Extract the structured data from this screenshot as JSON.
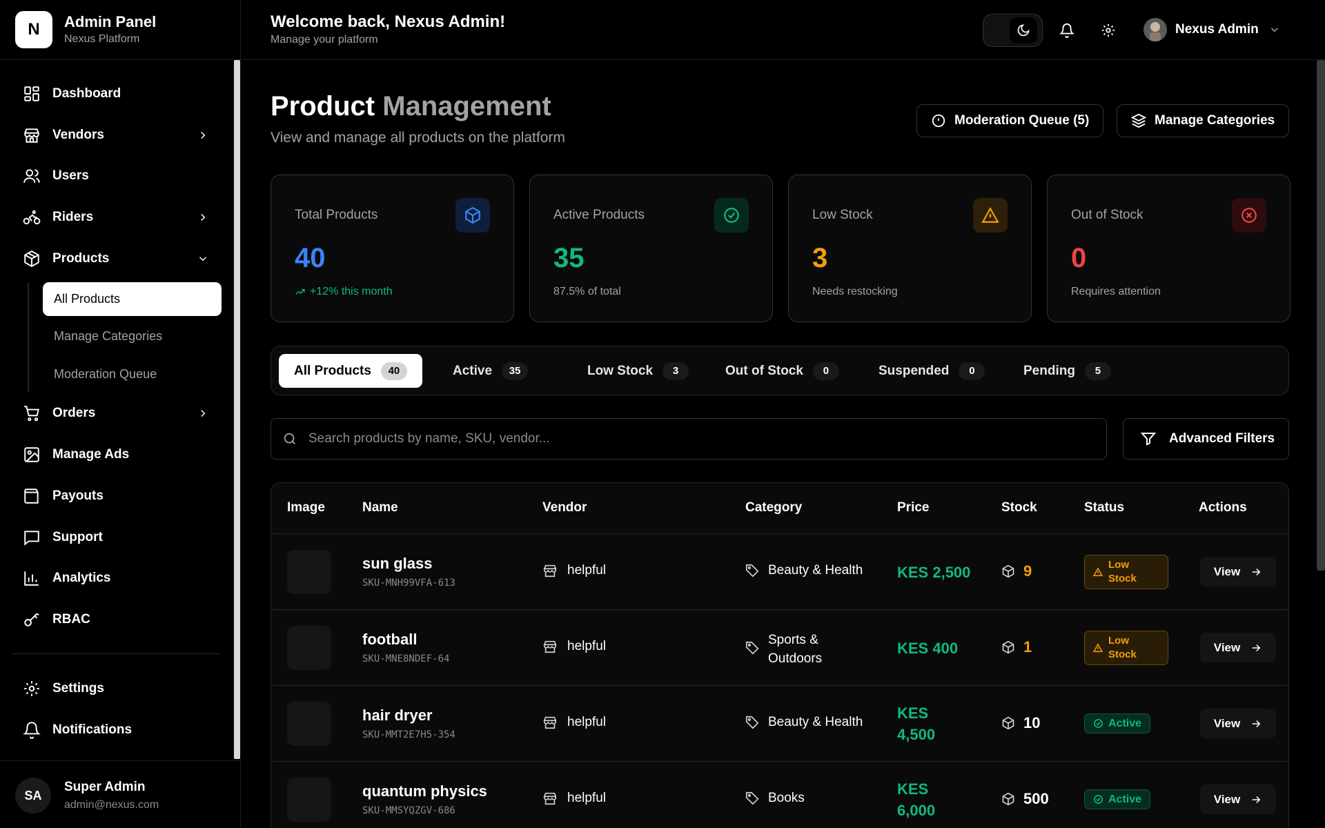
{
  "brand": {
    "logo_letter": "N",
    "title": "Admin Panel",
    "subtitle": "Nexus Platform"
  },
  "sidebar": {
    "items": [
      {
        "label": "Dashboard",
        "icon": "grid-icon"
      },
      {
        "label": "Vendors",
        "icon": "store-icon",
        "expandable": true
      },
      {
        "label": "Users",
        "icon": "users-icon"
      },
      {
        "label": "Riders",
        "icon": "bike-icon",
        "expandable": true
      },
      {
        "label": "Products",
        "icon": "package-icon",
        "expanded": true
      },
      {
        "label": "Orders",
        "icon": "cart-icon",
        "expandable": true
      },
      {
        "label": "Manage Ads",
        "icon": "image-icon"
      },
      {
        "label": "Payouts",
        "icon": "wallet-icon"
      },
      {
        "label": "Support",
        "icon": "message-icon"
      },
      {
        "label": "Analytics",
        "icon": "chart-icon"
      },
      {
        "label": "RBAC",
        "icon": "key-icon"
      },
      {
        "label": "Settings",
        "icon": "gear-icon"
      },
      {
        "label": "Notifications",
        "icon": "bell-icon"
      }
    ],
    "products_sub": [
      "All Products",
      "Manage Categories",
      "Moderation Queue"
    ],
    "active_sub": "All Products"
  },
  "account": {
    "initials": "SA",
    "name": "Super Admin",
    "email": "admin@nexus.com"
  },
  "header": {
    "welcome": "Welcome back, Nexus Admin!",
    "subtitle": "Manage your platform",
    "user_name": "Nexus Admin"
  },
  "page": {
    "title_bold": "Product",
    "title_muted": "Management",
    "subtitle": "View and manage all products on the platform",
    "moderation_btn": "Moderation Queue (5)",
    "categories_btn": "Manage Categories"
  },
  "stats": [
    {
      "label": "Total Products",
      "value": "40",
      "note": "+12% this month",
      "color": "#3b82f6"
    },
    {
      "label": "Active Products",
      "value": "35",
      "note": "87.5% of total",
      "color": "#10b981"
    },
    {
      "label": "Low Stock",
      "value": "3",
      "note": "Needs restocking",
      "color": "#f59e0b"
    },
    {
      "label": "Out of Stock",
      "value": "0",
      "note": "Requires attention",
      "color": "#ef4444"
    }
  ],
  "tabs": [
    {
      "label": "All Products",
      "count": "40"
    },
    {
      "label": "Active",
      "count": "35"
    },
    {
      "label": "Low Stock",
      "count": "3"
    },
    {
      "label": "Out of Stock",
      "count": "0"
    },
    {
      "label": "Suspended",
      "count": "0"
    },
    {
      "label": "Pending",
      "count": "5"
    }
  ],
  "search": {
    "placeholder": "Search products by name, SKU, vendor..."
  },
  "advanced_filters": "Advanced Filters",
  "table": {
    "headers": [
      "Image",
      "Name",
      "Vendor",
      "Category",
      "Price",
      "Stock",
      "Status",
      "Actions"
    ],
    "rows": [
      {
        "name": "sun glass",
        "sku": "SKU-MNH99VFA-613",
        "vendor": "helpful",
        "category_l1": "Beauty & Health",
        "category_l2": "",
        "price_l1": "KES 2,500",
        "price_l2": "",
        "stock": "9",
        "status_l1": "Low",
        "status_l2": "Stock",
        "action": "View"
      },
      {
        "name": "football",
        "sku": "SKU-MNE8NDEF-64",
        "vendor": "helpful",
        "category_l1": "Sports &",
        "category_l2": "Outdoors",
        "price_l1": "KES 400",
        "price_l2": "",
        "stock": "1",
        "status_l1": "Low",
        "status_l2": "Stock",
        "action": "View"
      },
      {
        "name": "hair dryer",
        "sku": "SKU-MMT2E7H5-354",
        "vendor": "helpful",
        "category_l1": "Beauty & Health",
        "category_l2": "",
        "price_l1": "KES",
        "price_l2": "4,500",
        "stock": "10",
        "status_l1": "Active",
        "status_l2": "",
        "action": "View"
      },
      {
        "name": "quantum physics",
        "sku": "SKU-MMSYQZGV-686",
        "vendor": "helpful",
        "category_l1": "Books",
        "category_l2": "",
        "price_l1": "KES",
        "price_l2": "6,000",
        "stock": "500",
        "status_l1": "Active",
        "status_l2": "",
        "action": "View"
      }
    ]
  }
}
